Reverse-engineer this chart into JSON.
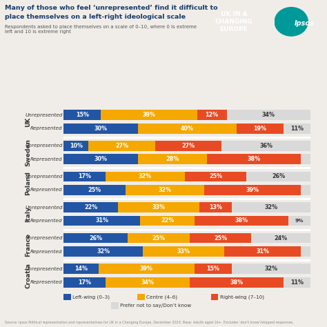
{
  "title_line1": "Many of those who feel ‘unrepresented’ find it difficult to",
  "title_line2": "place themselves on a left-right ideological scale",
  "subtitle": "Respondents asked to place themselves on a scale of 0–10, where 0 is extreme\nleft and 10 is extreme right",
  "source": "Source: Ipsos Political representation and representatives for UK in a Changing Europe, December 2023. Base: Adults aged 16+. Excludes ‘don’t know’/skipped responses.",
  "countries": [
    "UK",
    "Sweden",
    "Poland",
    "Italy",
    "France",
    "Croatia"
  ],
  "categories": [
    "Left-wing (0–3)",
    "Centre (4–6)",
    "Right-wing (7–10)",
    "Prefer not to say/Don’t know"
  ],
  "colors": [
    "#2255a4",
    "#f5a800",
    "#e84b23",
    "#d9d9d9"
  ],
  "data": {
    "UK": {
      "Unrepresented": [
        15,
        39,
        12,
        34
      ],
      "Represented": [
        30,
        40,
        19,
        11
      ]
    },
    "Sweden": {
      "Unrepresented": [
        10,
        27,
        27,
        36
      ],
      "Represented": [
        30,
        28,
        38,
        4
      ]
    },
    "Poland": {
      "Unrepresented": [
        17,
        32,
        25,
        26
      ],
      "Represented": [
        25,
        32,
        39,
        4
      ]
    },
    "Italy": {
      "Unrepresented": [
        22,
        33,
        13,
        32
      ],
      "Represented": [
        31,
        22,
        38,
        9
      ]
    },
    "France": {
      "Unrepresented": [
        26,
        25,
        25,
        24
      ],
      "Represented": [
        32,
        33,
        31,
        4
      ]
    },
    "Croatia": {
      "Unrepresented": [
        14,
        39,
        15,
        32
      ],
      "Represented": [
        17,
        34,
        38,
        11
      ]
    }
  },
  "background_color": "#f0ede8",
  "title_color": "#1a3a6b",
  "text_color_light": "#ffffff",
  "text_color_dark": "#333333",
  "logo_bg": "#1a3a6b",
  "ipsos_bg": "#e84b23"
}
